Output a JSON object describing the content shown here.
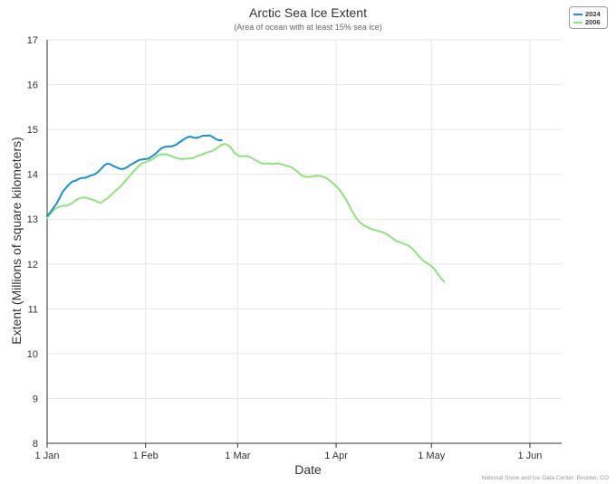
{
  "chart_data": {
    "type": "line",
    "title": "Arctic Sea Ice Extent",
    "subtitle": "(Area of ocean with at least 15% sea ice)",
    "xlabel": "Date",
    "ylabel": "Extent (Millions of square kilometers)",
    "ylim": [
      8,
      17
    ],
    "yticks": [
      8,
      9,
      10,
      11,
      12,
      13,
      14,
      15,
      16,
      17
    ],
    "xlim_day_of_year": [
      1,
      163
    ],
    "xticks": [
      {
        "label": "1 Jan",
        "day": 1
      },
      {
        "label": "1 Feb",
        "day": 32
      },
      {
        "label": "1 Mar",
        "day": 61
      },
      {
        "label": "1 Apr",
        "day": 92
      },
      {
        "label": "1 May",
        "day": 122
      },
      {
        "label": "1 Jun",
        "day": 153
      }
    ],
    "grid": true,
    "legend_position": "top-right",
    "credit": "National Snow and Ice Data Center, Boulder, CO",
    "series": [
      {
        "name": "2024",
        "color": "#1a8fd6",
        "points": [
          [
            1,
            13.07
          ],
          [
            2,
            13.15
          ],
          [
            3,
            13.25
          ],
          [
            4,
            13.35
          ],
          [
            5,
            13.48
          ],
          [
            6,
            13.62
          ],
          [
            7,
            13.7
          ],
          [
            8,
            13.78
          ],
          [
            9,
            13.84
          ],
          [
            10,
            13.86
          ],
          [
            11,
            13.9
          ],
          [
            12,
            13.92
          ],
          [
            13,
            13.92
          ],
          [
            14,
            13.95
          ],
          [
            15,
            13.98
          ],
          [
            16,
            14.0
          ],
          [
            17,
            14.05
          ],
          [
            18,
            14.12
          ],
          [
            19,
            14.2
          ],
          [
            20,
            14.24
          ],
          [
            21,
            14.22
          ],
          [
            22,
            14.18
          ],
          [
            23,
            14.15
          ],
          [
            24,
            14.12
          ],
          [
            25,
            14.12
          ],
          [
            26,
            14.15
          ],
          [
            27,
            14.2
          ],
          [
            28,
            14.24
          ],
          [
            29,
            14.28
          ],
          [
            30,
            14.32
          ],
          [
            31,
            14.33
          ],
          [
            32,
            14.34
          ],
          [
            33,
            14.35
          ],
          [
            34,
            14.4
          ],
          [
            35,
            14.45
          ],
          [
            36,
            14.52
          ],
          [
            37,
            14.58
          ],
          [
            38,
            14.61
          ],
          [
            39,
            14.62
          ],
          [
            40,
            14.62
          ],
          [
            41,
            14.64
          ],
          [
            42,
            14.68
          ],
          [
            43,
            14.73
          ],
          [
            44,
            14.78
          ],
          [
            45,
            14.82
          ],
          [
            46,
            14.84
          ],
          [
            47,
            14.82
          ],
          [
            48,
            14.81
          ],
          [
            49,
            14.83
          ],
          [
            50,
            14.86
          ],
          [
            51,
            14.86
          ],
          [
            52,
            14.87
          ],
          [
            53,
            14.84
          ],
          [
            54,
            14.79
          ],
          [
            55,
            14.76
          ],
          [
            56,
            14.76
          ]
        ]
      },
      {
        "name": "2006",
        "color": "#8ee47a",
        "points": [
          [
            1,
            13.02
          ],
          [
            2,
            13.12
          ],
          [
            3,
            13.2
          ],
          [
            4,
            13.25
          ],
          [
            5,
            13.28
          ],
          [
            6,
            13.3
          ],
          [
            7,
            13.3
          ],
          [
            8,
            13.32
          ],
          [
            9,
            13.36
          ],
          [
            10,
            13.42
          ],
          [
            11,
            13.46
          ],
          [
            12,
            13.48
          ],
          [
            13,
            13.48
          ],
          [
            14,
            13.46
          ],
          [
            15,
            13.44
          ],
          [
            16,
            13.42
          ],
          [
            17,
            13.38
          ],
          [
            18,
            13.36
          ],
          [
            19,
            13.42
          ],
          [
            20,
            13.46
          ],
          [
            21,
            13.53
          ],
          [
            22,
            13.6
          ],
          [
            23,
            13.66
          ],
          [
            24,
            13.72
          ],
          [
            25,
            13.8
          ],
          [
            26,
            13.88
          ],
          [
            27,
            13.96
          ],
          [
            28,
            14.05
          ],
          [
            29,
            14.12
          ],
          [
            30,
            14.2
          ],
          [
            31,
            14.25
          ],
          [
            32,
            14.27
          ],
          [
            33,
            14.3
          ],
          [
            34,
            14.33
          ],
          [
            35,
            14.38
          ],
          [
            36,
            14.43
          ],
          [
            37,
            14.44
          ],
          [
            38,
            14.45
          ],
          [
            39,
            14.44
          ],
          [
            40,
            14.41
          ],
          [
            41,
            14.38
          ],
          [
            42,
            14.36
          ],
          [
            43,
            14.34
          ],
          [
            44,
            14.34
          ],
          [
            45,
            14.35
          ],
          [
            46,
            14.35
          ],
          [
            47,
            14.36
          ],
          [
            48,
            14.4
          ],
          [
            49,
            14.42
          ],
          [
            50,
            14.45
          ],
          [
            51,
            14.48
          ],
          [
            52,
            14.5
          ],
          [
            53,
            14.52
          ],
          [
            54,
            14.56
          ],
          [
            55,
            14.61
          ],
          [
            56,
            14.66
          ],
          [
            57,
            14.68
          ],
          [
            58,
            14.65
          ],
          [
            59,
            14.58
          ],
          [
            60,
            14.48
          ],
          [
            61,
            14.42
          ],
          [
            62,
            14.4
          ],
          [
            63,
            14.4
          ],
          [
            64,
            14.41
          ],
          [
            65,
            14.38
          ],
          [
            66,
            14.34
          ],
          [
            67,
            14.3
          ],
          [
            68,
            14.26
          ],
          [
            69,
            14.24
          ],
          [
            70,
            14.24
          ],
          [
            71,
            14.24
          ],
          [
            72,
            14.23
          ],
          [
            73,
            14.24
          ],
          [
            74,
            14.24
          ],
          [
            75,
            14.22
          ],
          [
            76,
            14.2
          ],
          [
            77,
            14.18
          ],
          [
            78,
            14.15
          ],
          [
            79,
            14.1
          ],
          [
            80,
            14.05
          ],
          [
            81,
            13.98
          ],
          [
            82,
            13.95
          ],
          [
            83,
            13.94
          ],
          [
            84,
            13.94
          ],
          [
            85,
            13.96
          ],
          [
            86,
            13.97
          ],
          [
            87,
            13.96
          ],
          [
            88,
            13.94
          ],
          [
            89,
            13.91
          ],
          [
            90,
            13.86
          ],
          [
            91,
            13.8
          ],
          [
            92,
            13.74
          ],
          [
            93,
            13.66
          ],
          [
            94,
            13.56
          ],
          [
            95,
            13.45
          ],
          [
            96,
            13.32
          ],
          [
            97,
            13.18
          ],
          [
            98,
            13.06
          ],
          [
            99,
            12.96
          ],
          [
            100,
            12.9
          ],
          [
            101,
            12.85
          ],
          [
            102,
            12.82
          ],
          [
            103,
            12.78
          ],
          [
            104,
            12.76
          ],
          [
            105,
            12.74
          ],
          [
            106,
            12.72
          ],
          [
            107,
            12.7
          ],
          [
            108,
            12.66
          ],
          [
            109,
            12.61
          ],
          [
            110,
            12.56
          ],
          [
            111,
            12.51
          ],
          [
            112,
            12.49
          ],
          [
            113,
            12.46
          ],
          [
            114,
            12.43
          ],
          [
            115,
            12.4
          ],
          [
            116,
            12.34
          ],
          [
            117,
            12.26
          ],
          [
            118,
            12.18
          ],
          [
            119,
            12.1
          ],
          [
            120,
            12.04
          ],
          [
            121,
            12.0
          ],
          [
            122,
            11.95
          ],
          [
            123,
            11.88
          ],
          [
            124,
            11.78
          ],
          [
            125,
            11.68
          ],
          [
            126,
            11.6
          ]
        ]
      }
    ]
  }
}
